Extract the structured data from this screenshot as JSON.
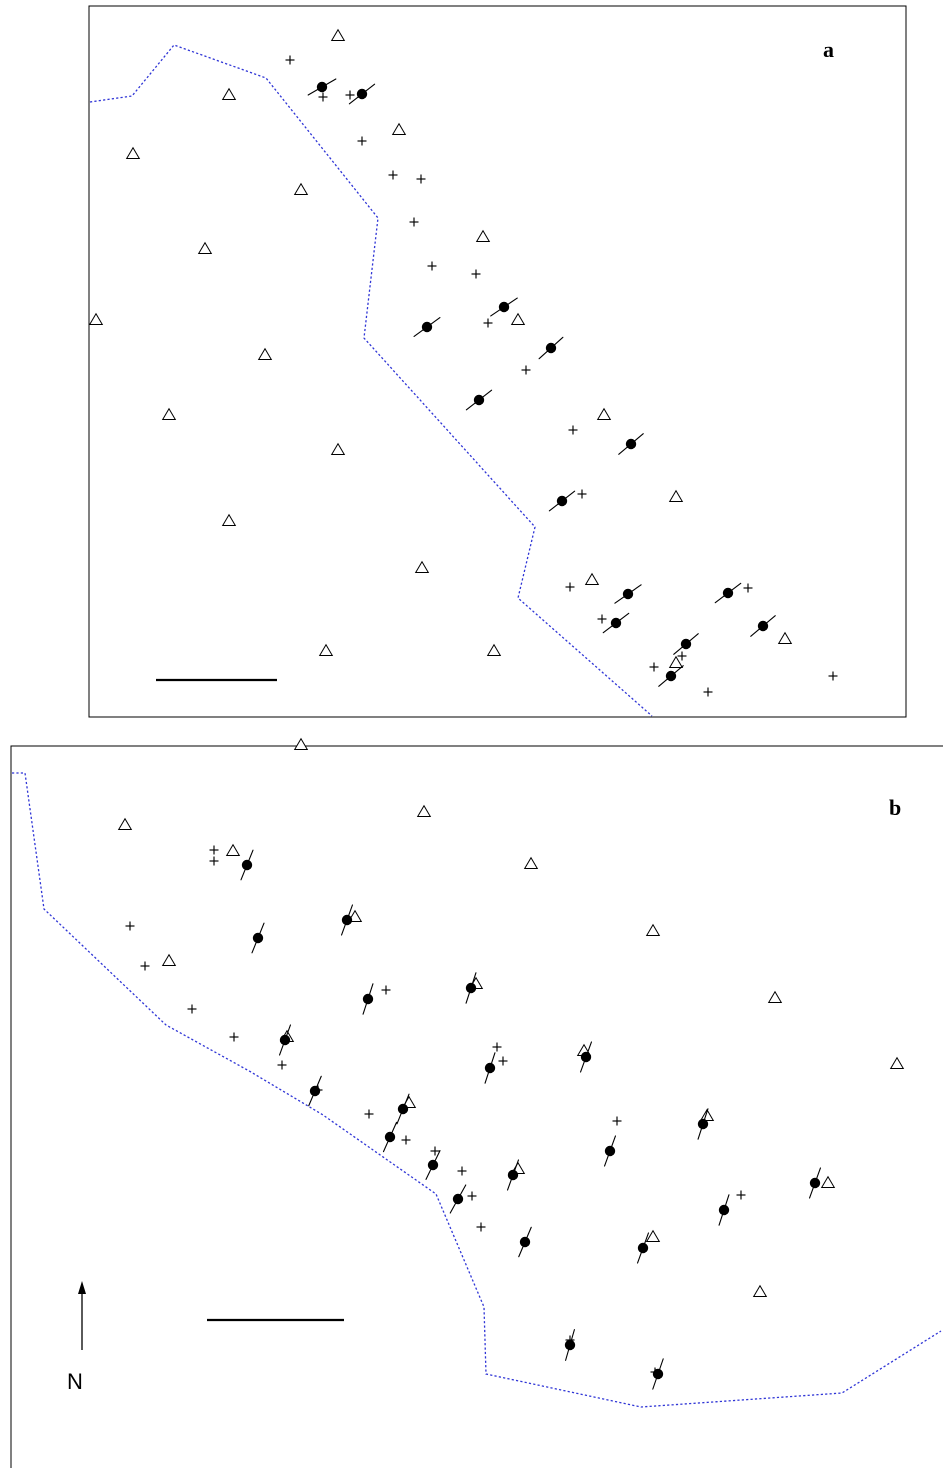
{
  "colors": {
    "frame": "#000000",
    "boundary": "#2f35d6",
    "marker": "#000000",
    "background": "#ffffff"
  },
  "legend_symbols": {
    "triangle": "open-triangle",
    "plus": "plus",
    "dot": "filled-circle-with-tick"
  },
  "panels": [
    {
      "id": "a",
      "label": "a",
      "boundary": [
        [
          90,
          102
        ],
        [
          132,
          96
        ],
        [
          174,
          45
        ],
        [
          266,
          78
        ],
        [
          378,
          218
        ],
        [
          364,
          338
        ],
        [
          535,
          527
        ],
        [
          518,
          598
        ],
        [
          652,
          716
        ]
      ],
      "triangles": [
        [
          338,
          36
        ],
        [
          229,
          95
        ],
        [
          399,
          130
        ],
        [
          133,
          154
        ],
        [
          301,
          190
        ],
        [
          205,
          249
        ],
        [
          483,
          237
        ],
        [
          96,
          320
        ],
        [
          518,
          320
        ],
        [
          265,
          355
        ],
        [
          169,
          415
        ],
        [
          604,
          415
        ],
        [
          338,
          450
        ],
        [
          676,
          497
        ],
        [
          229,
          521
        ],
        [
          422,
          568
        ],
        [
          592,
          580
        ],
        [
          785,
          639
        ],
        [
          326,
          651
        ],
        [
          494,
          651
        ],
        [
          676,
          663
        ]
      ],
      "pluses": [
        [
          290,
          60
        ],
        [
          323,
          97
        ],
        [
          350,
          95
        ],
        [
          362,
          141
        ],
        [
          393,
          175
        ],
        [
          421,
          179
        ],
        [
          414,
          222
        ],
        [
          432,
          266
        ],
        [
          476,
          274
        ],
        [
          488,
          323
        ],
        [
          526,
          370
        ],
        [
          573,
          430
        ],
        [
          582,
          494
        ],
        [
          570,
          587
        ],
        [
          602,
          619
        ],
        [
          748,
          588
        ],
        [
          654,
          667
        ],
        [
          682,
          656
        ],
        [
          708,
          692
        ],
        [
          833,
          676
        ]
      ],
      "dots": [
        [
          322,
          87,
          -30
        ],
        [
          362,
          94,
          -38
        ],
        [
          504,
          307,
          -34
        ],
        [
          427,
          327,
          -36
        ],
        [
          551,
          348,
          -42
        ],
        [
          479,
          400,
          -38
        ],
        [
          631,
          444,
          -40
        ],
        [
          562,
          501,
          -38
        ],
        [
          628,
          594,
          -35
        ],
        [
          616,
          623,
          -37
        ],
        [
          728,
          593,
          -37
        ],
        [
          763,
          626,
          -40
        ],
        [
          686,
          644,
          -40
        ],
        [
          671,
          676,
          -40
        ]
      ]
    },
    {
      "id": "b",
      "label": "b",
      "boundary": [
        [
          12,
          773
        ],
        [
          25,
          773
        ],
        [
          44,
          909
        ],
        [
          166,
          1025
        ],
        [
          251,
          1072
        ],
        [
          323,
          1115
        ],
        [
          436,
          1194
        ],
        [
          484,
          1307
        ],
        [
          486,
          1374
        ],
        [
          641,
          1407
        ],
        [
          842,
          1393
        ],
        [
          941,
          1331
        ]
      ],
      "triangles": [
        [
          301,
          745
        ],
        [
          125,
          825
        ],
        [
          424,
          812
        ],
        [
          233,
          851
        ],
        [
          531,
          864
        ],
        [
          355,
          917
        ],
        [
          653,
          931
        ],
        [
          169,
          961
        ],
        [
          476,
          984
        ],
        [
          775,
          998
        ],
        [
          287,
          1037
        ],
        [
          584,
          1051
        ],
        [
          897,
          1064
        ],
        [
          409,
          1103
        ],
        [
          707,
          1116
        ],
        [
          518,
          1169
        ],
        [
          828,
          1183
        ],
        [
          653,
          1237
        ],
        [
          760,
          1292
        ]
      ],
      "pluses": [
        [
          214,
          850
        ],
        [
          214,
          861
        ],
        [
          130,
          926
        ],
        [
          145,
          966
        ],
        [
          192,
          1009
        ],
        [
          234,
          1037
        ],
        [
          282,
          1065
        ],
        [
          386,
          990
        ],
        [
          497,
          1047
        ],
        [
          503,
          1061
        ],
        [
          318,
          1090
        ],
        [
          369,
          1114
        ],
        [
          406,
          1140
        ],
        [
          435,
          1151
        ],
        [
          617,
          1121
        ],
        [
          462,
          1171
        ],
        [
          472,
          1196
        ],
        [
          741,
          1195
        ],
        [
          481,
          1227
        ],
        [
          570,
          1340
        ],
        [
          655,
          1372
        ]
      ],
      "dots": [
        [
          247,
          865,
          -68
        ],
        [
          258,
          938,
          -68
        ],
        [
          347,
          920,
          -70
        ],
        [
          368,
          999,
          -72
        ],
        [
          471,
          988,
          -72
        ],
        [
          285,
          1040,
          -70
        ],
        [
          586,
          1057,
          -70
        ],
        [
          315,
          1091,
          -67
        ],
        [
          490,
          1068,
          -72
        ],
        [
          403,
          1109,
          -68
        ],
        [
          703,
          1124,
          -72
        ],
        [
          390,
          1137,
          -66
        ],
        [
          610,
          1151,
          -70
        ],
        [
          433,
          1165,
          -64
        ],
        [
          513,
          1175,
          -70
        ],
        [
          458,
          1199,
          -61
        ],
        [
          815,
          1183,
          -70
        ],
        [
          724,
          1210,
          -72
        ],
        [
          525,
          1242,
          -67
        ],
        [
          643,
          1248,
          -70
        ],
        [
          570,
          1345,
          -74
        ],
        [
          658,
          1374,
          -71
        ]
      ]
    }
  ]
}
